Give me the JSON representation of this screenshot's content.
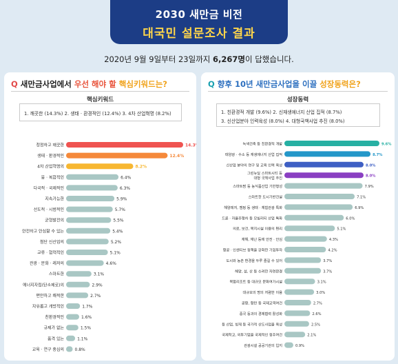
{
  "header": {
    "title_line1": "2030 새만금 비전",
    "title_line2": "대국민 설문조사 결과"
  },
  "subline": {
    "prefix": "2020년 9월 9일부터 23일까지 ",
    "count": "6,267명",
    "suffix": "이 답했습니다."
  },
  "left": {
    "title_pre": "새만금사업에서 ",
    "title_hl1": "우선 해야 할",
    "title_mid": " ",
    "title_hl2": "핵심키워드는?",
    "box_title": "핵심키워드",
    "box_row1": "1. 깨끗한 (14.3%)  2. 생태 · 환경적인 (12.4%)  3. 4차 산업혁명 (8.2%)",
    "colors": {
      "top1": "#ef5350",
      "top2": "#f5893a",
      "top3": "#f7b731",
      "rest": "#a9c7c4"
    }
  },
  "right": {
    "title_pre": "향후 10년 새만금사업을 이끌 ",
    "title_hl": "성장동력은?",
    "box_title": "성장동력",
    "box_row1": "1. 친환경적 개발 (9.6%)  2. 신재생에너지 산업 집적 (8.7%)",
    "box_row2": "3. 신산업분야 인력육성 (8.0%)  4. 대형국책사업 추진 (8.0%)",
    "colors": {
      "top1": "#27b0a3",
      "top2": "#2497c9",
      "top3": "#3e5fc4",
      "top4": "#8a3fc2",
      "rest": "#a9c7c4"
    }
  },
  "chart_data": [
    {
      "type": "bar",
      "orientation": "horizontal",
      "categories": [
        "청정하고 깨끗한",
        "생태 · 환경적인",
        "4차 산업혁명의",
        "융 · 복합적인",
        "다국적 · 국제적인",
        "지속가능한",
        "선도적 · 시범적인",
        "균형발전의",
        "안전하고 안심할 수 있는",
        "첨단 신산업의",
        "교류 · 협력적인",
        "관광 · 문화 · 레저의",
        "스마트한",
        "에너지자립(탄소제로)의",
        "편안하고 쾌적한",
        "자유롭고 개방적인",
        "친환경적인",
        "규제가 없는",
        "품격 있는",
        "교육 · 연구 중심의"
      ],
      "values": [
        14.3,
        12.4,
        8.2,
        6.4,
        6.3,
        5.9,
        5.7,
        5.5,
        5.4,
        5.2,
        5.1,
        4.6,
        3.1,
        2.9,
        2.7,
        1.7,
        1.6,
        1.5,
        1.1,
        0.8
      ],
      "labels": [
        "14.3%",
        "12.4%",
        "8.2%",
        "6.4%",
        "6.3%",
        "5.9%",
        "5.7%",
        "5.5%",
        "5.4%",
        "5.2%",
        "5.1%",
        "4.6%",
        "3.1%",
        "2.9%",
        "2.7%",
        "1.7%",
        "1.6%",
        "1.5%",
        "1.1%",
        "0.8%"
      ]
    },
    {
      "type": "bar",
      "orientation": "horizontal",
      "categories": [
        "녹색건축 등 친환경적 개발",
        "태양광 · 수소 등 재생에너지 산업 집적",
        "신산업 분야의 연구 및 교육 인력 육성",
        "그린뉴딜 스마트시티 등\n대형 국책사업 추진",
        "스마트팜 등 농식품산업 기반형성",
        "스마트한 도시기반건설",
        "해양레저, 캠핑 등 생태 · 체험관광 특화",
        "드론 · 자율주행차 등 모빌리티 산업 특화",
        "의료, 보건, 복지시설 이용의 편리",
        "재해, 재난 등에 안전 · 안심",
        "항공 · 인센티브 정책을 강화한 기업투자",
        "도시와 농촌 환경을 두루 즐길 수 있어",
        "해양, 섬, 산 등 수려한 자연환경",
        "복합리조트 등 대규모 문화여가시설",
        "대규모의 명의 저렴한 이용",
        "공항, 항만 등 국제교역여건",
        "중국 등과의 경제협력 활성화",
        "등 산업, 빙재 등 국가적 산도사업을 육성",
        "국제학교, 외투기업을 국제적인 정주여건",
        "관광시설 공공기관의 입지"
      ],
      "values": [
        9.6,
        8.7,
        8.0,
        8.0,
        7.9,
        7.1,
        6.9,
        6.0,
        5.1,
        4.3,
        4.2,
        3.7,
        3.7,
        3.1,
        3.0,
        2.7,
        2.6,
        2.5,
        2.1,
        0.9
      ],
      "labels": [
        "9.6%",
        "8.7%",
        "8.0%",
        "8.0%",
        "7.9%",
        "7.1%",
        "6.9%",
        "6.0%",
        "5.1%",
        "4.3%",
        "4.2%",
        "3.7%",
        "3.7%",
        "3.1%",
        "3.0%",
        "2.7%",
        "2.6%",
        "2.5%",
        "2.1%",
        "0.9%"
      ]
    }
  ]
}
